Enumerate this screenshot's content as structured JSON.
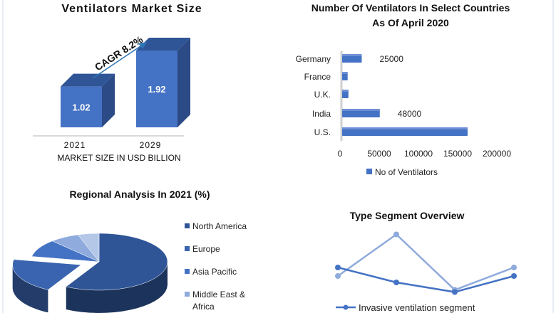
{
  "chart_data": [
    {
      "type": "bar",
      "title": "Ventilators Market Size",
      "categories": [
        "2021",
        "2029"
      ],
      "values": [
        1.02,
        1.92
      ],
      "data_labels": [
        "1.02",
        "1.92"
      ],
      "xlabel": "MARKET SIZE IN USD BILLION",
      "annotation": "CAGR 8.2%",
      "style": "3d-column",
      "colors": {
        "front": "#4472c4",
        "top": "#2f5597",
        "side": "#2b4a86"
      }
    },
    {
      "type": "bar",
      "orientation": "horizontal",
      "title_lines": [
        "Number Of Ventilators In Select Countries",
        "As Of April 2020"
      ],
      "categories": [
        "Germany",
        "France",
        "U.K.",
        "India",
        "U.S."
      ],
      "series": [
        {
          "name": "No of Ventilators",
          "values": [
            25000,
            7000,
            8000,
            48000,
            160000
          ]
        }
      ],
      "data_labels": [
        "25000",
        "",
        "",
        "48000",
        ""
      ],
      "xticks": [
        "0",
        "50000",
        "100000",
        "150000",
        "200000"
      ],
      "xlim": [
        0,
        200000
      ],
      "legend": "bottom",
      "color": "#4472c4"
    },
    {
      "type": "pie",
      "title": "Regional Analysis In 2021 (%)",
      "style": "3d-exploded",
      "slices": [
        {
          "name": "North America",
          "value": 58,
          "color": "#2f5597"
        },
        {
          "name": "Europe",
          "value": 20,
          "color": "#3a64b0"
        },
        {
          "name": "Asia Pacific",
          "value": 10,
          "color": "#4472c4"
        },
        {
          "name": "Middle East & Africa",
          "value": 7,
          "color": "#8faadc"
        },
        {
          "name": "",
          "value": 5,
          "color": "#b4c7e7"
        }
      ],
      "legend_labels": [
        "North America",
        "Europe",
        "Asia Pacific",
        "Middle East &",
        "Africa"
      ],
      "legend": "right"
    },
    {
      "type": "line",
      "title": "Type Segment Overview",
      "x": [
        1,
        2,
        3,
        4
      ],
      "series": [
        {
          "name": "Invasive ventilation segment",
          "values": [
            3.6,
            2.2,
            1.3,
            2.8
          ],
          "color": "#4472c4"
        },
        {
          "values": [
            2.8,
            6.7,
            1.5,
            3.6
          ],
          "color": "#8faadc"
        }
      ],
      "grid": false,
      "axes": false,
      "legend": "bottom"
    }
  ]
}
